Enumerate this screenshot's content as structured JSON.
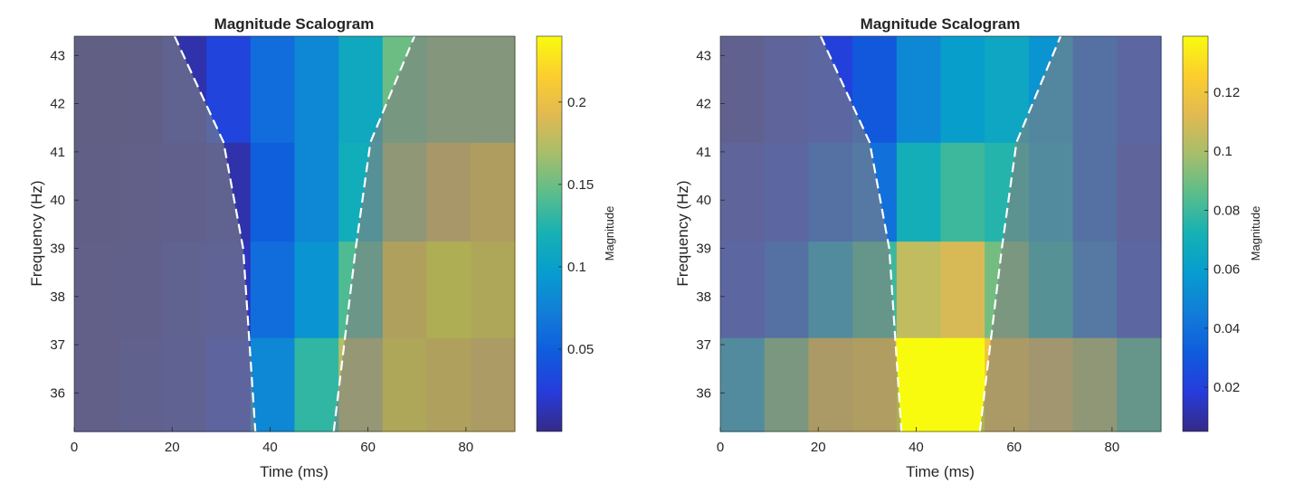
{
  "chart_data": [
    {
      "type": "heatmap",
      "title": "Magnitude Scalogram",
      "xlabel": "Time (ms)",
      "ylabel": "Frequency (Hz)",
      "colorbar_label": "Magnitude",
      "xlim": [
        0,
        90
      ],
      "ylim": [
        35.2,
        43.4
      ],
      "xticks": [
        0,
        20,
        40,
        60,
        80
      ],
      "yticks": [
        36,
        37,
        38,
        39,
        40,
        41,
        42,
        43
      ],
      "clim": [
        0.0,
        0.24
      ],
      "cticks": [
        0.05,
        0.1,
        0.15,
        0.2
      ],
      "colormap": "parula",
      "x_edges": [
        0,
        9,
        18,
        27,
        36,
        45,
        54,
        63,
        72,
        81,
        90
      ],
      "y_edges": [
        35.2,
        37.15,
        39.15,
        41.2,
        43.4
      ],
      "rows_low_to_high_freq": [
        [
          0.005,
          0.008,
          0.012,
          0.02,
          0.08,
          0.13,
          0.175,
          0.23,
          0.22,
          0.21
        ],
        [
          0.004,
          0.006,
          0.01,
          0.015,
          0.06,
          0.09,
          0.14,
          0.22,
          0.24,
          0.23
        ],
        [
          0.003,
          0.004,
          0.007,
          0.01,
          0.05,
          0.08,
          0.115,
          0.17,
          0.2,
          0.215
        ],
        [
          0.002,
          0.003,
          0.01,
          0.03,
          0.06,
          0.08,
          0.11,
          0.15,
          0.16,
          0.16
        ]
      ],
      "cone_of_influence": [
        {
          "x": 20.5,
          "y": 43.4
        },
        {
          "x": 30.5,
          "y": 41.2
        },
        {
          "x": 34.5,
          "y": 39.0
        },
        {
          "x": 37.0,
          "y": 35.2
        },
        {
          "x": 53.0,
          "y": 35.2
        },
        {
          "x": 57.5,
          "y": 39.0
        },
        {
          "x": 60.5,
          "y": 41.2
        },
        {
          "x": 69.5,
          "y": 43.4
        }
      ]
    },
    {
      "type": "heatmap",
      "title": "Magnitude Scalogram",
      "xlabel": "Time (ms)",
      "ylabel": "Frequency (Hz)",
      "colorbar_label": "Magnitude",
      "xlim": [
        0,
        90
      ],
      "ylim": [
        35.2,
        43.4
      ],
      "xticks": [
        0,
        20,
        40,
        60,
        80
      ],
      "yticks": [
        36,
        37,
        38,
        39,
        40,
        41,
        42,
        43
      ],
      "clim": [
        0.005,
        0.139
      ],
      "cticks": [
        0.02,
        0.04,
        0.06,
        0.08,
        0.1,
        0.12
      ],
      "colormap": "parula",
      "x_edges": [
        0,
        9,
        18,
        27,
        36,
        45,
        54,
        63,
        72,
        81,
        90
      ],
      "y_edges": [
        35.2,
        37.15,
        39.15,
        41.2,
        43.4
      ],
      "rows_low_to_high_freq": [
        [
          0.06,
          0.09,
          0.12,
          0.125,
          0.139,
          0.139,
          0.12,
          0.11,
          0.1,
          0.08
        ],
        [
          0.02,
          0.03,
          0.06,
          0.08,
          0.105,
          0.11,
          0.09,
          0.07,
          0.04,
          0.02
        ],
        [
          0.015,
          0.02,
          0.03,
          0.04,
          0.07,
          0.08,
          0.075,
          0.06,
          0.03,
          0.015
        ],
        [
          0.01,
          0.015,
          0.02,
          0.03,
          0.05,
          0.06,
          0.065,
          0.055,
          0.03,
          0.02
        ]
      ],
      "cone_of_influence": [
        {
          "x": 20.5,
          "y": 43.4
        },
        {
          "x": 30.5,
          "y": 41.2
        },
        {
          "x": 34.5,
          "y": 39.0
        },
        {
          "x": 37.0,
          "y": 35.2
        },
        {
          "x": 53.0,
          "y": 35.2
        },
        {
          "x": 57.5,
          "y": 39.0
        },
        {
          "x": 60.5,
          "y": 41.2
        },
        {
          "x": 69.5,
          "y": 43.4
        }
      ]
    }
  ]
}
